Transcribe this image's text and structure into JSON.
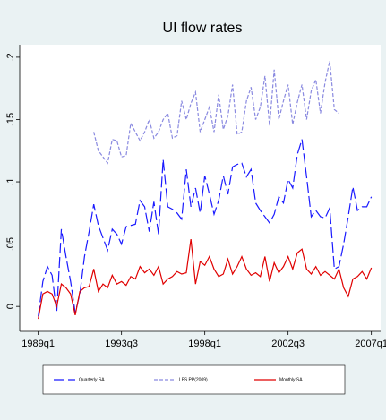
{
  "chart_data": {
    "type": "line",
    "title": "UI flow rates",
    "x": [
      116,
      117,
      118,
      119,
      120,
      121,
      122,
      123,
      124,
      125,
      126,
      127,
      128,
      129,
      130,
      131,
      132,
      133,
      134,
      135,
      136,
      137,
      138,
      139,
      140,
      141,
      142,
      143,
      144,
      145,
      146,
      147,
      148,
      149,
      150,
      151,
      152,
      153,
      154,
      155,
      156,
      157,
      158,
      159,
      160,
      161,
      162,
      163,
      164,
      165,
      166,
      167,
      168,
      169,
      170,
      171,
      172,
      173,
      174,
      175,
      176,
      177,
      178,
      179,
      180,
      181,
      182,
      183,
      184,
      185,
      186,
      187,
      188
    ],
    "xlim": [
      112,
      190
    ],
    "xticks": [
      {
        "value": 116,
        "label": "1989q1"
      },
      {
        "value": 134,
        "label": "1993q3"
      },
      {
        "value": 152,
        "label": "1998q1"
      },
      {
        "value": 170,
        "label": "2002q3"
      },
      {
        "value": 188,
        "label": "2007q1"
      }
    ],
    "ylim": [
      -0.02,
      0.21
    ],
    "yticks": [
      {
        "value": 0,
        "label": "0"
      },
      {
        "value": 0.05,
        "label": ".05"
      },
      {
        "value": 0.1,
        "label": ".1"
      },
      {
        "value": 0.15,
        "label": ".15"
      },
      {
        "value": 0.2,
        "label": ".2"
      }
    ],
    "legend": "bottom",
    "series": [
      {
        "name": "Quarterly SA",
        "color": "#1a1aff",
        "style": "longdash",
        "values": [
          -0.008,
          0.02,
          0.032,
          0.025,
          -0.005,
          0.062,
          0.04,
          0.02,
          -0.005,
          0.01,
          0.04,
          0.06,
          0.082,
          0.065,
          0.055,
          0.045,
          0.062,
          0.058,
          0.05,
          0.064,
          0.065,
          0.066,
          0.085,
          0.08,
          0.06,
          0.084,
          0.058,
          0.118,
          0.08,
          0.078,
          0.075,
          0.07,
          0.11,
          0.08,
          0.095,
          0.075,
          0.105,
          0.09,
          0.074,
          0.085,
          0.105,
          0.09,
          0.112,
          0.114,
          0.115,
          0.104,
          0.11,
          0.083,
          0.077,
          0.072,
          0.067,
          0.074,
          0.088,
          0.083,
          0.102,
          0.095,
          0.122,
          0.134,
          0.104,
          0.072,
          0.077,
          0.072,
          0.071,
          0.079,
          0.03,
          0.032,
          0.05,
          0.072,
          0.096,
          0.077,
          0.08,
          0.08,
          0.088
        ]
      },
      {
        "name": "LFS PP(2009)",
        "color": "#8a8ae0",
        "style": "shortdash",
        "values": [
          null,
          null,
          null,
          null,
          null,
          null,
          null,
          null,
          null,
          null,
          null,
          null,
          0.14,
          0.125,
          0.12,
          0.115,
          0.134,
          0.133,
          0.12,
          0.121,
          0.147,
          0.14,
          0.133,
          0.14,
          0.15,
          0.135,
          0.14,
          0.15,
          0.155,
          0.135,
          0.137,
          0.165,
          0.15,
          0.163,
          0.172,
          0.14,
          0.15,
          0.16,
          0.14,
          0.17,
          0.142,
          0.153,
          0.178,
          0.138,
          0.14,
          0.165,
          0.176,
          0.15,
          0.16,
          0.185,
          0.145,
          0.19,
          0.15,
          0.165,
          0.178,
          0.146,
          0.164,
          0.178,
          0.15,
          0.173,
          0.182,
          0.155,
          0.18,
          0.197,
          0.158,
          0.155,
          null,
          null,
          null,
          null,
          null,
          null,
          null
        ]
      },
      {
        "name": "Monthly SA",
        "color": "#e00000",
        "style": "solid",
        "values": [
          -0.01,
          0.01,
          0.012,
          0.01,
          0.0,
          0.018,
          0.015,
          0.01,
          -0.007,
          0.012,
          0.015,
          0.016,
          0.03,
          0.012,
          0.018,
          0.015,
          0.025,
          0.018,
          0.02,
          0.017,
          0.024,
          0.022,
          0.032,
          0.027,
          0.03,
          0.025,
          0.032,
          0.018,
          0.022,
          0.024,
          0.028,
          0.026,
          0.027,
          0.054,
          0.018,
          0.036,
          0.033,
          0.04,
          0.03,
          0.024,
          0.026,
          0.038,
          0.026,
          0.032,
          0.04,
          0.03,
          0.025,
          0.027,
          0.024,
          0.04,
          0.02,
          0.035,
          0.027,
          0.032,
          0.04,
          0.03,
          0.043,
          0.046,
          0.03,
          0.026,
          0.032,
          0.025,
          0.028,
          0.025,
          0.022,
          0.03,
          0.015,
          0.008,
          0.022,
          0.024,
          0.028,
          0.022,
          0.031
        ]
      }
    ]
  }
}
